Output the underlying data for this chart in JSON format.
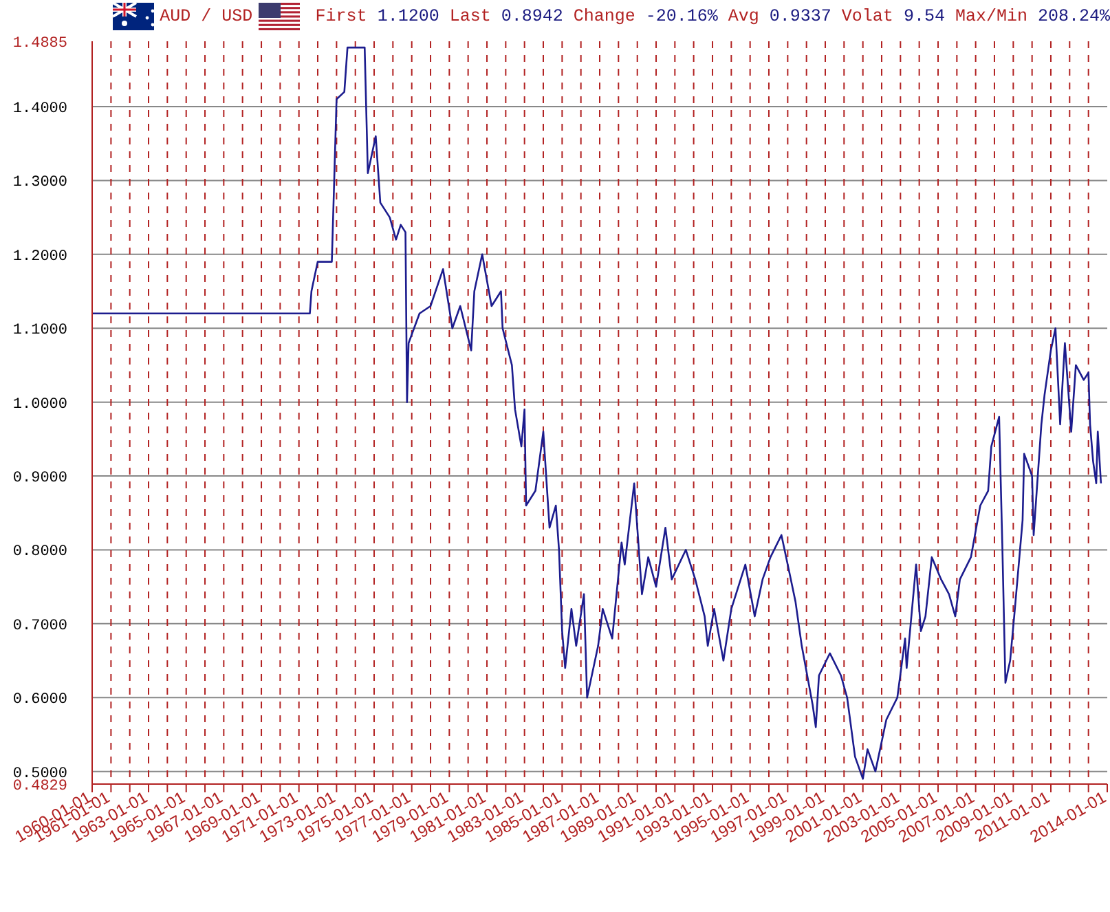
{
  "chart_data": {
    "type": "line",
    "title": "AUD / USD",
    "subtitle": "First 1.1200 Last 0.8942 Change -20.16% Avg 0.9337 Volat 9.54 Max/Min 208.24%",
    "x": [
      "1960-01",
      "1970-12",
      "1971-02",
      "1971-08",
      "1971-09",
      "1971-10",
      "1972-01",
      "1972-10",
      "1973-01",
      "1973-06",
      "1973-08",
      "1974-01",
      "1974-07",
      "1974-09",
      "1975-02",
      "1975-05",
      "1975-11",
      "1976-03",
      "1976-06",
      "1976-09",
      "1976-10",
      "1976-11",
      "1977-06",
      "1978-01",
      "1978-09",
      "1979-03",
      "1979-08",
      "1980-03",
      "1980-05",
      "1980-10",
      "1981-04",
      "1981-10",
      "1981-11",
      "1982-05",
      "1982-07",
      "1982-11",
      "1983-01",
      "1983-02",
      "1983-08",
      "1984-01",
      "1984-05",
      "1984-09",
      "1984-11",
      "1985-01",
      "1985-03",
      "1985-07",
      "1985-10",
      "1986-03",
      "1986-05",
      "1986-12",
      "1987-03",
      "1987-09",
      "1988-03",
      "1988-05",
      "1988-11",
      "1989-04",
      "1989-08",
      "1990-01",
      "1990-07",
      "1990-11",
      "1991-08",
      "1992-02",
      "1992-08",
      "1992-10",
      "1993-02",
      "1993-08",
      "1994-01",
      "1994-10",
      "1995-04",
      "1995-09",
      "1996-02",
      "1996-09",
      "1997-02",
      "1997-06",
      "1997-10",
      "1998-05",
      "1998-07",
      "1998-09",
      "1999-04",
      "1999-11",
      "2000-03",
      "2000-08",
      "2001-01",
      "2001-04",
      "2001-09",
      "2002-04",
      "2002-11",
      "2003-04",
      "2003-05",
      "2003-11",
      "2004-02",
      "2004-05",
      "2004-09",
      "2005-03",
      "2005-08",
      "2005-12",
      "2006-03",
      "2006-10",
      "2007-04",
      "2007-09",
      "2007-11",
      "2008-04",
      "2008-06",
      "2008-08",
      "2008-11",
      "2009-02",
      "2009-07",
      "2009-08",
      "2010-01",
      "2010-02",
      "2010-07",
      "2010-09",
      "2011-01",
      "2011-04",
      "2011-07",
      "2011-10",
      "2012-02",
      "2012-05",
      "2012-10",
      "2013-01",
      "2013-02",
      "2013-04",
      "2013-06",
      "2013-07",
      "2013-09"
    ],
    "values": [
      1.12,
      1.12,
      1.12,
      1.12,
      1.15,
      1.16,
      1.19,
      1.19,
      1.41,
      1.42,
      1.48,
      1.48,
      1.48,
      1.31,
      1.36,
      1.27,
      1.25,
      1.22,
      1.24,
      1.23,
      1.0,
      1.08,
      1.12,
      1.13,
      1.18,
      1.1,
      1.13,
      1.07,
      1.15,
      1.2,
      1.13,
      1.15,
      1.1,
      1.05,
      0.99,
      0.94,
      0.99,
      0.86,
      0.88,
      0.96,
      0.83,
      0.86,
      0.8,
      0.69,
      0.64,
      0.72,
      0.67,
      0.74,
      0.6,
      0.67,
      0.72,
      0.68,
      0.81,
      0.78,
      0.89,
      0.74,
      0.79,
      0.75,
      0.83,
      0.76,
      0.8,
      0.76,
      0.71,
      0.67,
      0.72,
      0.65,
      0.72,
      0.78,
      0.71,
      0.76,
      0.79,
      0.82,
      0.77,
      0.73,
      0.67,
      0.59,
      0.56,
      0.63,
      0.66,
      0.63,
      0.6,
      0.52,
      0.49,
      0.53,
      0.5,
      0.57,
      0.6,
      0.68,
      0.64,
      0.78,
      0.69,
      0.71,
      0.79,
      0.76,
      0.74,
      0.71,
      0.76,
      0.79,
      0.86,
      0.88,
      0.94,
      0.98,
      0.81,
      0.62,
      0.65,
      0.72,
      0.84,
      0.93,
      0.9,
      0.82,
      0.97,
      1.01,
      1.07,
      1.1,
      0.97,
      1.08,
      0.96,
      1.05,
      1.03,
      1.04,
      0.97,
      0.92,
      0.89,
      0.96,
      0.89
    ],
    "color": "#1c1c8e",
    "xlim": [
      "1960-01-01",
      "2014-01-01"
    ],
    "xticks": [
      "1960-01-01",
      "1961-01-01",
      {
        "value": "1962-01-01",
        "label": null
      },
      "1963-01-01",
      {
        "value": "1964-01-01",
        "label": null
      },
      "1965-01-01",
      {
        "value": "1966-01-01",
        "label": null
      },
      "1967-01-01",
      {
        "value": "1968-01-01",
        "label": null
      },
      "1969-01-01",
      {
        "value": "1970-01-01",
        "label": null
      },
      "1971-01-01",
      {
        "value": "1972-01-01",
        "label": null
      },
      "1973-01-01",
      {
        "value": "1974-01-01",
        "label": null
      },
      "1975-01-01",
      {
        "value": "1976-01-01",
        "label": null
      },
      "1977-01-01",
      {
        "value": "1978-01-01",
        "label": null
      },
      "1979-01-01",
      {
        "value": "1980-01-01",
        "label": null
      },
      "1981-01-01",
      {
        "value": "1982-01-01",
        "label": null
      },
      "1983-01-01",
      {
        "value": "1984-01-01",
        "label": null
      },
      "1985-01-01",
      {
        "value": "1986-01-01",
        "label": null
      },
      "1987-01-01",
      {
        "value": "1988-01-01",
        "label": null
      },
      "1989-01-01",
      {
        "value": "1990-01-01",
        "label": null
      },
      "1991-01-01",
      {
        "value": "1992-01-01",
        "label": null
      },
      "1993-01-01",
      {
        "value": "1994-01-01",
        "label": null
      },
      "1995-01-01",
      {
        "value": "1996-01-01",
        "label": null
      },
      "1997-01-01",
      {
        "value": "1998-01-01",
        "label": null
      },
      "1999-01-01",
      {
        "value": "2000-01-01",
        "label": null
      },
      "2001-01-01",
      {
        "value": "2002-01-01",
        "label": null
      },
      "2003-01-01",
      {
        "value": "2004-01-01",
        "label": null
      },
      "2005-01-01",
      {
        "value": "2006-01-01",
        "label": null
      },
      "2007-01-01",
      {
        "value": "2008-01-01",
        "label": null
      },
      "2009-01-01",
      {
        "value": "2010-01-01",
        "label": null
      },
      "2011-01-01",
      {
        "value": "2012-01-01",
        "label": null
      },
      {
        "value": "2013-01-01",
        "label": null
      },
      "2014-01-01"
    ],
    "ylim": [
      0.4829,
      1.4885
    ],
    "yticks": [
      0.4829,
      {
        "value": 0.5,
        "label": "0.5000"
      },
      {
        "value": 0.6,
        "label": "0.6000"
      },
      {
        "value": 0.7,
        "label": "0.7000"
      },
      {
        "value": 0.8,
        "label": "0.8000"
      },
      {
        "value": 0.9,
        "label": "0.9000"
      },
      {
        "value": 1.0,
        "label": "1.0000"
      },
      {
        "value": 1.1,
        "label": "1.1000"
      },
      {
        "value": 1.2,
        "label": "1.2000"
      },
      {
        "value": 1.3,
        "label": "1.3000"
      },
      {
        "value": 1.4,
        "label": "1.4000"
      },
      1.4885
    ],
    "grid": true
  }
}
